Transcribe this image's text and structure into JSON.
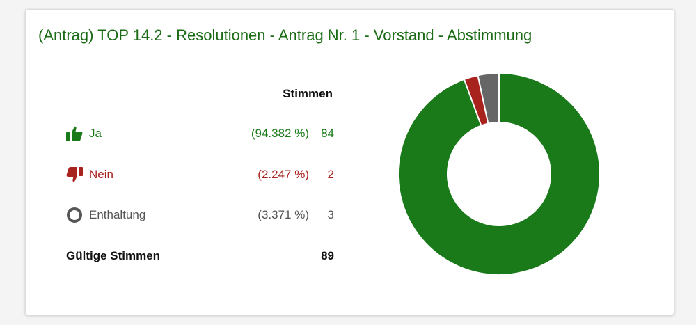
{
  "panel": {
    "title": "(Antrag) TOP 14.2 - Resolutionen - Antrag Nr. 1 - Vorstand - Abstimmung",
    "column_header": "Stimmen"
  },
  "votes": {
    "yes": {
      "label": "Ja",
      "percent": "(94.382 %)",
      "count": "84"
    },
    "no": {
      "label": "Nein",
      "percent": "(2.247 %)",
      "count": "2"
    },
    "abstain": {
      "label": "Enthaltung",
      "percent": "(3.371 %)",
      "count": "3"
    },
    "total": {
      "label": "Gültige Stimmen",
      "count": "89"
    }
  },
  "colors": {
    "yes": "#1a7a1a",
    "no": "#a8221e",
    "abstain": "#666666",
    "title": "#1b6b17"
  },
  "icons": {
    "yes": "thumbs-up-icon",
    "no": "thumbs-down-icon",
    "abstain": "circle-outline-icon"
  },
  "chart_data": {
    "type": "pie",
    "categories": [
      "Ja",
      "Nein",
      "Enthaltung"
    ],
    "values": [
      84,
      2,
      3
    ],
    "colors": [
      "#1a7a1a",
      "#a8221e",
      "#666666"
    ],
    "donut": true
  }
}
